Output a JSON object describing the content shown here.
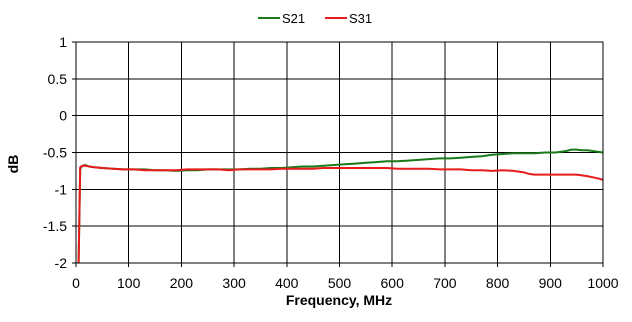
{
  "chart_data": {
    "type": "line",
    "title": "",
    "xlabel": "Frequency, MHz",
    "ylabel": "dB",
    "xlim": [
      0,
      1000
    ],
    "ylim": [
      -2,
      1
    ],
    "xticks": [
      0,
      100,
      200,
      300,
      400,
      500,
      600,
      700,
      800,
      900,
      1000
    ],
    "yticks": [
      1,
      0.5,
      0,
      -0.5,
      -1,
      -1.5,
      -2
    ],
    "grid": true,
    "legend_position": "top",
    "series": [
      {
        "name": "S21",
        "color": "#1a7a1a",
        "x": [
          5,
          8,
          12,
          18,
          25,
          35,
          50,
          70,
          90,
          110,
          130,
          150,
          170,
          190,
          210,
          230,
          250,
          270,
          290,
          310,
          330,
          350,
          370,
          390,
          410,
          430,
          450,
          470,
          490,
          510,
          530,
          550,
          570,
          590,
          610,
          630,
          650,
          670,
          690,
          710,
          730,
          750,
          770,
          790,
          810,
          830,
          850,
          870,
          890,
          910,
          930,
          940,
          950,
          960,
          970,
          980,
          990,
          1000
        ],
        "y": [
          -2.0,
          -0.72,
          -0.68,
          -0.67,
          -0.69,
          -0.7,
          -0.71,
          -0.72,
          -0.73,
          -0.73,
          -0.73,
          -0.74,
          -0.74,
          -0.75,
          -0.74,
          -0.74,
          -0.73,
          -0.73,
          -0.73,
          -0.73,
          -0.72,
          -0.72,
          -0.71,
          -0.71,
          -0.7,
          -0.69,
          -0.69,
          -0.68,
          -0.67,
          -0.66,
          -0.65,
          -0.64,
          -0.63,
          -0.62,
          -0.62,
          -0.61,
          -0.6,
          -0.59,
          -0.58,
          -0.58,
          -0.57,
          -0.56,
          -0.55,
          -0.53,
          -0.52,
          -0.51,
          -0.51,
          -0.51,
          -0.5,
          -0.5,
          -0.48,
          -0.46,
          -0.46,
          -0.47,
          -0.47,
          -0.48,
          -0.49,
          -0.5
        ]
      },
      {
        "name": "S31",
        "color": "#e81a1a",
        "x": [
          5,
          8,
          12,
          18,
          25,
          35,
          50,
          70,
          90,
          110,
          130,
          150,
          170,
          190,
          210,
          230,
          250,
          270,
          290,
          310,
          330,
          350,
          370,
          390,
          410,
          430,
          450,
          470,
          490,
          510,
          530,
          550,
          570,
          590,
          610,
          630,
          650,
          670,
          690,
          710,
          730,
          750,
          770,
          790,
          810,
          830,
          850,
          860,
          870,
          890,
          910,
          930,
          950,
          970,
          990,
          1000
        ],
        "y": [
          -2.0,
          -0.7,
          -0.68,
          -0.68,
          -0.69,
          -0.7,
          -0.71,
          -0.72,
          -0.73,
          -0.73,
          -0.74,
          -0.74,
          -0.74,
          -0.74,
          -0.73,
          -0.73,
          -0.73,
          -0.73,
          -0.74,
          -0.73,
          -0.73,
          -0.73,
          -0.73,
          -0.72,
          -0.72,
          -0.72,
          -0.72,
          -0.71,
          -0.71,
          -0.71,
          -0.71,
          -0.71,
          -0.71,
          -0.71,
          -0.72,
          -0.72,
          -0.72,
          -0.72,
          -0.73,
          -0.73,
          -0.73,
          -0.74,
          -0.74,
          -0.75,
          -0.74,
          -0.75,
          -0.77,
          -0.79,
          -0.8,
          -0.8,
          -0.8,
          -0.8,
          -0.8,
          -0.82,
          -0.85,
          -0.87
        ]
      }
    ]
  }
}
